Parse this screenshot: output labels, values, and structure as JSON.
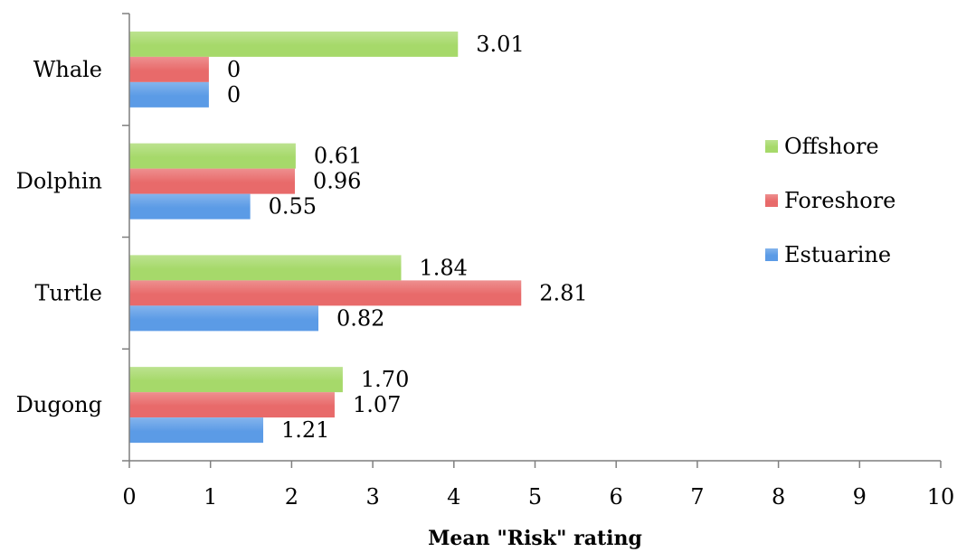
{
  "chart_data": {
    "type": "bar",
    "orientation": "horizontal",
    "categories": [
      "Whale",
      "Dolphin",
      "Turtle",
      "Dugong"
    ],
    "series": [
      {
        "name": "Offshore",
        "color": "#a6d96a",
        "values": [
          4.05,
          2.05,
          3.35,
          2.63
        ],
        "labels": [
          "3.01",
          "0.61",
          "1.84",
          "1.70"
        ]
      },
      {
        "name": "Foreshore",
        "color": "#e86a6a",
        "values": [
          0.98,
          2.04,
          4.83,
          2.53
        ],
        "labels": [
          "0",
          "0.96",
          "2.81",
          "1.07"
        ]
      },
      {
        "name": "Estuarine",
        "color": "#5b9be6",
        "values": [
          0.98,
          1.49,
          2.33,
          1.65
        ],
        "labels": [
          "0",
          "0.55",
          "0.82",
          "1.21"
        ]
      }
    ],
    "xlim": [
      0,
      10
    ],
    "xticks": [
      "0",
      "1",
      "2",
      "3",
      "4",
      "5",
      "6",
      "7",
      "8",
      "9",
      "10"
    ],
    "xlabel": "Mean \"Risk\" rating",
    "ylabel": "",
    "title": "",
    "grid": false,
    "legend_position": "right"
  }
}
